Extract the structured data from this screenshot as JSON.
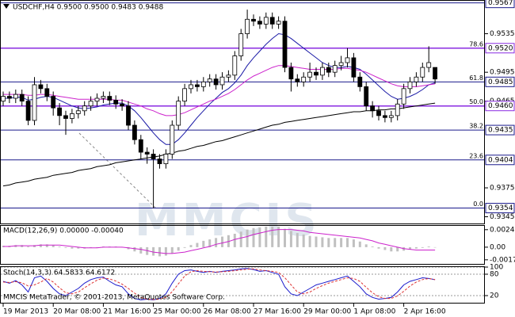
{
  "chart_data": [
    {
      "type": "candlestick",
      "title": "USDCHF,H4 0.9500 0.9500 0.9483 0.9488",
      "watermark": "MMCIS",
      "categories": [
        "19 Mar 2013",
        null,
        null,
        null,
        null,
        null,
        null,
        null,
        "20 Mar 08:00",
        null,
        null,
        null,
        null,
        null,
        null,
        null,
        "21 Mar 16:00",
        null,
        null,
        null,
        null,
        null,
        null,
        null,
        "25 Mar 00:00",
        null,
        null,
        null,
        null,
        null,
        null,
        null,
        "26 Mar 08:00",
        null,
        null,
        null,
        null,
        null,
        null,
        null,
        "27 Mar 16:00",
        null,
        null,
        null,
        null,
        null,
        null,
        null,
        "29 Mar 00:00",
        null,
        null,
        null,
        null,
        null,
        null,
        null,
        "1 Apr 08:00",
        null,
        null,
        null,
        null,
        null,
        null,
        null,
        "2 Apr 16:00",
        null,
        null,
        null,
        null,
        null
      ],
      "open": [
        0.9465,
        0.947,
        0.9468,
        0.9472,
        0.9465,
        0.9445,
        0.9482,
        0.9478,
        0.947,
        0.9458,
        0.945,
        0.9447,
        0.9452,
        0.9455,
        0.946,
        0.9465,
        0.9468,
        0.947,
        0.9466,
        0.9462,
        0.946,
        0.944,
        0.9425,
        0.9412,
        0.941,
        0.9405,
        0.94,
        0.941,
        0.944,
        0.9465,
        0.9478,
        0.9482,
        0.948,
        0.9485,
        0.9488,
        0.9482,
        0.949,
        0.9492,
        0.9512,
        0.9535,
        0.955,
        0.9548,
        0.9545,
        0.9552,
        0.9545,
        0.9548,
        0.95,
        0.9488,
        0.9485,
        0.949,
        0.9495,
        0.9492,
        0.95,
        0.9495,
        0.9502,
        0.9505,
        0.951,
        0.949,
        0.948,
        0.946,
        0.9455,
        0.945,
        0.9448,
        0.945,
        0.9462,
        0.9478,
        0.9485,
        0.949,
        0.95,
        0.95
      ],
      "high": [
        0.9475,
        0.9475,
        0.9477,
        0.9477,
        0.947,
        0.949,
        0.9487,
        0.9483,
        0.9475,
        0.9463,
        0.9455,
        0.9457,
        0.946,
        0.9465,
        0.947,
        0.9473,
        0.9475,
        0.9475,
        0.9471,
        0.9467,
        0.9465,
        0.9445,
        0.943,
        0.9417,
        0.9415,
        0.941,
        0.9415,
        0.9445,
        0.947,
        0.9483,
        0.9487,
        0.9487,
        0.949,
        0.9493,
        0.9493,
        0.9495,
        0.9497,
        0.9517,
        0.954,
        0.956,
        0.9555,
        0.9553,
        0.9557,
        0.9557,
        0.9553,
        0.9553,
        0.9505,
        0.9493,
        0.9495,
        0.9505,
        0.95,
        0.9505,
        0.9505,
        0.9507,
        0.9512,
        0.952,
        0.9515,
        0.9495,
        0.9485,
        0.9465,
        0.946,
        0.9455,
        0.9455,
        0.9467,
        0.9483,
        0.949,
        0.9495,
        0.9505,
        0.9522,
        0.95
      ],
      "low": [
        0.946,
        0.9463,
        0.9463,
        0.946,
        0.944,
        0.944,
        0.9473,
        0.9465,
        0.945,
        0.944,
        0.943,
        0.9442,
        0.9447,
        0.945,
        0.9455,
        0.946,
        0.9463,
        0.9461,
        0.9457,
        0.9455,
        0.9435,
        0.942,
        0.9405,
        0.94,
        0.9354,
        0.9395,
        0.9395,
        0.9405,
        0.9435,
        0.946,
        0.9473,
        0.9475,
        0.9475,
        0.948,
        0.9477,
        0.9477,
        0.9485,
        0.9487,
        0.9507,
        0.953,
        0.9543,
        0.954,
        0.954,
        0.954,
        0.954,
        0.9495,
        0.9475,
        0.948,
        0.948,
        0.9485,
        0.9487,
        0.9487,
        0.949,
        0.949,
        0.9497,
        0.95,
        0.9485,
        0.9475,
        0.9455,
        0.9448,
        0.9445,
        0.9443,
        0.9443,
        0.9445,
        0.9457,
        0.9473,
        0.948,
        0.9485,
        0.9495,
        0.9483
      ],
      "close": [
        0.947,
        0.9468,
        0.9472,
        0.9465,
        0.9445,
        0.9482,
        0.9478,
        0.947,
        0.9458,
        0.945,
        0.9447,
        0.9452,
        0.9455,
        0.946,
        0.9465,
        0.9468,
        0.947,
        0.9466,
        0.9462,
        0.946,
        0.944,
        0.9425,
        0.9412,
        0.941,
        0.9405,
        0.94,
        0.941,
        0.944,
        0.9465,
        0.9478,
        0.9482,
        0.948,
        0.9485,
        0.9488,
        0.9482,
        0.949,
        0.9492,
        0.9512,
        0.9535,
        0.955,
        0.9548,
        0.9545,
        0.9552,
        0.9545,
        0.9548,
        0.95,
        0.9488,
        0.9485,
        0.949,
        0.9495,
        0.9492,
        0.95,
        0.9495,
        0.9502,
        0.9505,
        0.951,
        0.949,
        0.948,
        0.946,
        0.9455,
        0.945,
        0.9448,
        0.945,
        0.9462,
        0.9478,
        0.9485,
        0.949,
        0.95,
        0.9505,
        0.9488
      ],
      "bull_color": "#ffffff",
      "bear_color": "#000000",
      "overlays": [
        {
          "color": "#1a1aa6",
          "values": [
            0.9468,
            0.9468,
            0.9469,
            0.9469,
            0.9466,
            0.9467,
            0.9469,
            0.947,
            0.9469,
            0.9466,
            0.9463,
            0.946,
            0.9458,
            0.9457,
            0.9458,
            0.9459,
            0.9461,
            0.9462,
            0.9463,
            0.9463,
            0.946,
            0.9455,
            0.9448,
            0.944,
            0.9432,
            0.9425,
            0.942,
            0.942,
            0.9425,
            0.9432,
            0.944,
            0.9448,
            0.9455,
            0.9462,
            0.9468,
            0.9474,
            0.9478,
            0.9484,
            0.9492,
            0.9502,
            0.951,
            0.9517,
            0.9524,
            0.953,
            0.9535,
            0.9534,
            0.953,
            0.9525,
            0.952,
            0.9515,
            0.951,
            0.9505,
            0.9502,
            0.95,
            0.95,
            0.9501,
            0.95,
            0.9498,
            0.9493,
            0.9487,
            0.9481,
            0.9475,
            0.947,
            0.9467,
            0.9468,
            0.947,
            0.9473,
            0.9477,
            0.9482,
            0.9484
          ]
        },
        {
          "color": "#cc22cc",
          "values": [
            0.9472,
            0.9472,
            0.9472,
            0.9472,
            0.9471,
            0.9471,
            0.9472,
            0.9472,
            0.9471,
            0.947,
            0.9469,
            0.9468,
            0.9467,
            0.9467,
            0.9467,
            0.9467,
            0.9467,
            0.9467,
            0.9466,
            0.9466,
            0.9464,
            0.9462,
            0.946,
            0.9457,
            0.9455,
            0.9452,
            0.945,
            0.945,
            0.9451,
            0.9453,
            0.9456,
            0.9459,
            0.9462,
            0.9465,
            0.9467,
            0.947,
            0.9473,
            0.9477,
            0.9482,
            0.9487,
            0.9491,
            0.9494,
            0.9497,
            0.95,
            0.9502,
            0.9502,
            0.9501,
            0.95,
            0.9499,
            0.9498,
            0.9498,
            0.9498,
            0.9498,
            0.9498,
            0.9499,
            0.9499,
            0.9498,
            0.9497,
            0.9495,
            0.9492,
            0.9489,
            0.9486,
            0.9483,
            0.9481,
            0.948,
            0.948,
            0.948,
            0.9481,
            0.9482,
            0.9483
          ]
        },
        {
          "color": "#000000",
          "values": [
            0.9377,
            0.9378,
            0.938,
            0.9381,
            0.9382,
            0.9384,
            0.9385,
            0.9386,
            0.9388,
            0.9389,
            0.939,
            0.9391,
            0.9393,
            0.9394,
            0.9395,
            0.9397,
            0.9398,
            0.9399,
            0.9401,
            0.9402,
            0.9403,
            0.9404,
            0.9405,
            0.9406,
            0.9407,
            0.9408,
            0.941,
            0.9411,
            0.9413,
            0.9414,
            0.9416,
            0.9418,
            0.9419,
            0.9421,
            0.9423,
            0.9424,
            0.9426,
            0.9428,
            0.943,
            0.9432,
            0.9434,
            0.9436,
            0.9438,
            0.944,
            0.9441,
            0.9443,
            0.9444,
            0.9445,
            0.9446,
            0.9447,
            0.9448,
            0.9449,
            0.945,
            0.9451,
            0.9452,
            0.9453,
            0.9454,
            0.9454,
            0.9455,
            0.9455,
            0.9456,
            0.9456,
            0.9457,
            0.9457,
            0.9458,
            0.9459,
            0.946,
            0.9461,
            0.9462,
            0.9463
          ]
        }
      ],
      "fib_levels": [
        {
          "label": "100.0",
          "price": 0.9567,
          "color": "#1a1a8c"
        },
        {
          "label": "78.6",
          "price": {
            "value": 0.952,
            "label": "0.9520"
          },
          "color": "#8a2be2"
        },
        {
          "label": "61.8",
          "price": 0.9485,
          "color": "#1a1a8c"
        },
        {
          "label": "50.0",
          "price": {
            "value": 0.946,
            "label": "0.9460"
          },
          "color": "#8a2be2"
        },
        {
          "label": "38.2",
          "price": 0.9435,
          "color": "#1a1a8c"
        },
        {
          "label": "23.6",
          "price": 0.9404,
          "color": "#1a1a8c"
        },
        {
          "label": "0.0",
          "price": 0.9354,
          "color": "#1a1a8c"
        }
      ],
      "ylim": [
        0.9338,
        0.957
      ],
      "yticks": [
        0.9535,
        0.9495,
        0.9465,
        0.9375,
        0.9345
      ]
    },
    {
      "type": "macd",
      "label": "MACD(12,26,9) 0.00000 -0.00040",
      "series": [
        {
          "color": "#c0c0c0",
          "values": [
            0.0002,
            0.0002,
            0.0003,
            0.0003,
            0.0001,
            0.0003,
            0.0004,
            0.0004,
            0.0003,
            0.0001,
            -0.0001,
            -0.0002,
            -0.0002,
            -0.0002,
            -0.0001,
            0,
            0.0001,
            0.0001,
            0.0001,
            0,
            -0.0003,
            -0.0006,
            -0.0009,
            -0.0011,
            -0.0012,
            -0.0013,
            -0.0012,
            -0.0009,
            -0.0005,
            -0.0001,
            0.0003,
            0.0006,
            0.0009,
            0.0011,
            0.0013,
            0.0015,
            0.0017,
            0.0019,
            0.0022,
            0.0025,
            0.0027,
            0.0028,
            0.0029,
            0.0029,
            0.0029,
            0.0026,
            0.0023,
            0.002,
            0.0018,
            0.0016,
            0.0015,
            0.0014,
            0.0013,
            0.0013,
            0.0013,
            0.0013,
            0.0011,
            0.0008,
            0.0004,
            0.0001,
            -0.0002,
            -0.0004,
            -0.0006,
            -0.0006,
            -0.0005,
            -0.0003,
            -0.0002,
            -0.0001,
            0.0001,
            0
          ]
        },
        {
          "color": "#cc22cc",
          "values": [
            0.0001,
            0.0001,
            0.0002,
            0.0002,
            0.0002,
            0.0002,
            0.0003,
            0.0003,
            0.0003,
            0.0003,
            0.0002,
            0.0001,
            0,
            -0.0001,
            -0.0001,
            -0.0001,
            0,
            0,
            0,
            0,
            -0.0001,
            -0.0002,
            -0.0003,
            -0.0005,
            -0.0007,
            -0.0008,
            -0.0009,
            -0.0009,
            -0.0008,
            -0.0007,
            -0.0005,
            -0.0003,
            -0.0001,
            0.0001,
            0.0004,
            0.0006,
            0.0008,
            0.0011,
            0.0013,
            0.0015,
            0.0018,
            0.002,
            0.0022,
            0.0024,
            0.0025,
            0.0025,
            0.0025,
            0.0024,
            0.0023,
            0.0021,
            0.002,
            0.0019,
            0.0018,
            0.0017,
            0.0016,
            0.0015,
            0.0014,
            0.0013,
            0.0011,
            0.0009,
            0.0006,
            0.0004,
            0.0002,
            0,
            -0.0002,
            -0.0003,
            -0.0004,
            -0.0004,
            -0.0004,
            -0.0004
          ]
        }
      ],
      "ylim": [
        -0.00237,
        0.00302
      ],
      "yticks": [
        0.00248,
        {
          "value": 0,
          "label": "0.00"
        },
        -0.00179
      ]
    },
    {
      "type": "stochastic",
      "label": "Stoch(14,3,3) 64.5833 64.6172",
      "series": [
        {
          "color": "#1a1acc",
          "dashed": false,
          "values": [
            60,
            55,
            62,
            50,
            30,
            70,
            75,
            60,
            40,
            25,
            20,
            30,
            40,
            55,
            65,
            70,
            72,
            60,
            50,
            45,
            25,
            12,
            8,
            10,
            8,
            12,
            25,
            55,
            80,
            90,
            92,
            88,
            85,
            88,
            85,
            88,
            90,
            92,
            95,
            96,
            93,
            88,
            90,
            85,
            80,
            45,
            25,
            20,
            30,
            40,
            50,
            55,
            60,
            65,
            70,
            75,
            60,
            45,
            25,
            15,
            10,
            12,
            15,
            30,
            50,
            60,
            65,
            70,
            68,
            64.5833
          ]
        },
        {
          "color": "#dd3333",
          "dashed": true,
          "values": [
            58,
            57,
            59,
            56,
            47,
            50,
            58,
            68,
            58,
            42,
            28,
            25,
            30,
            42,
            53,
            63,
            69,
            67,
            61,
            52,
            40,
            27,
            15,
            10,
            9,
            10,
            15,
            31,
            53,
            75,
            87,
            90,
            88,
            87,
            86,
            87,
            88,
            90,
            92,
            94,
            95,
            92,
            90,
            88,
            85,
            70,
            50,
            30,
            25,
            30,
            40,
            48,
            55,
            60,
            65,
            70,
            68,
            60,
            43,
            28,
            17,
            12,
            12,
            19,
            32,
            47,
            58,
            65,
            68,
            64.6172
          ]
        }
      ],
      "ylim": [
        0,
        100
      ],
      "yticks": [
        100,
        80,
        20
      ]
    }
  ],
  "footer": "MMCIS MetaTrader, © 2001-2013, MetaQuotes Software Corp."
}
